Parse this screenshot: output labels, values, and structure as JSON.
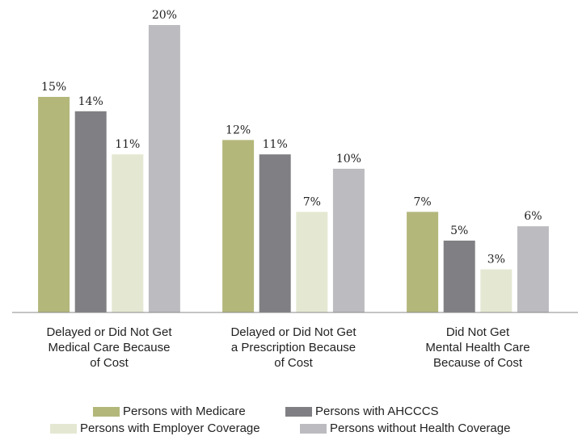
{
  "chart_data": {
    "type": "bar",
    "categories": [
      "Delayed or Did Not Get\nMedical Care Because\nof Cost",
      "Delayed or Did Not Get\na Prescription Because\nof Cost",
      "Did Not Get\nMental Health Care\nBecause of Cost"
    ],
    "series": [
      {
        "name": "Persons with Medicare",
        "color": "#b3b77a",
        "values": [
          15,
          12,
          7
        ],
        "value_labels": [
          "15%",
          "12%",
          "7%"
        ]
      },
      {
        "name": "Persons with AHCCCS",
        "color": "#808084",
        "values": [
          14,
          11,
          5
        ],
        "value_labels": [
          "14%",
          "11%",
          "5%"
        ]
      },
      {
        "name": "Persons with Employer Coverage",
        "color": "#e4e8d2",
        "values": [
          11,
          7,
          3
        ],
        "value_labels": [
          "11%",
          "7%",
          "3%"
        ]
      },
      {
        "name": "Persons without Health Coverage",
        "color": "#bcbcc0",
        "values": [
          20,
          10,
          6
        ],
        "value_labels": [
          "20%",
          "10%",
          "6%"
        ]
      }
    ],
    "ylim": [
      0,
      20
    ],
    "grid": false
  }
}
